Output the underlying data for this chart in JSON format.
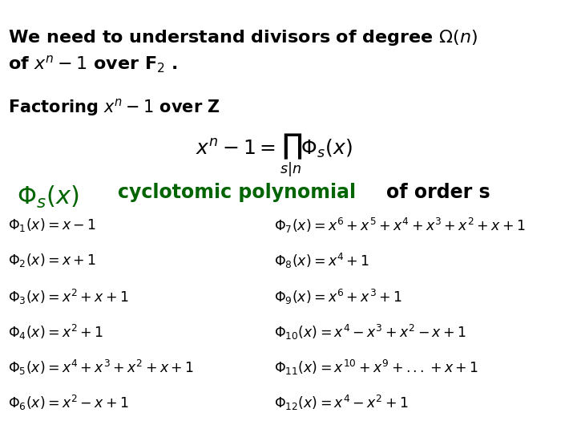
{
  "bg_color": "#ffffff",
  "text_color": "#000000",
  "green_color": "#006400",
  "line1_text": "We need to understand divisors of degree $\\Omega(n)$",
  "line2_text": "of $x^n-1$ over $\\mathbf{F}_2$ .",
  "factoring_line": "Factoring $x^n-1$ over $\\mathbf{Z}$",
  "product_formula": "$x^n - 1 = \\prod_{s|n} \\Phi_s(x)$",
  "phi_label": "$\\Phi_s(x)$",
  "cyclo_text1": "cyclotomic polynomial",
  "cyclo_text2": "of order s",
  "left_formulas": [
    "$\\Phi_1(x) = x-1$",
    "$\\Phi_2(x) = x+1$",
    "$\\Phi_3(x) = x^2+x+1$",
    "$\\Phi_4(x) = x^2+1$",
    "$\\Phi_5(x) = x^4+x^3+x^2+x+1$",
    "$\\Phi_6(x) = x^2-x+1$"
  ],
  "right_formulas": [
    "$\\Phi_7(x) = x^6+x^5+x^4+x^3+x^2+x+1$",
    "$\\Phi_8(x) = x^4+1$",
    "$\\Phi_9(x) = x^6+x^3+1$",
    "$\\Phi_{10}(x) = x^4-x^3+x^2-x+1$",
    "$\\Phi_{11}(x) = x^{10}+x^9+...+x+1$",
    "$\\Phi_{12}(x) = x^4-x^2+1$"
  ],
  "header_fontsize": 16,
  "formula_fontsize": 12.5,
  "phi_label_fontsize": 22,
  "cyclo_fontsize": 17,
  "factoring_fontsize": 15,
  "product_fontsize": 18
}
